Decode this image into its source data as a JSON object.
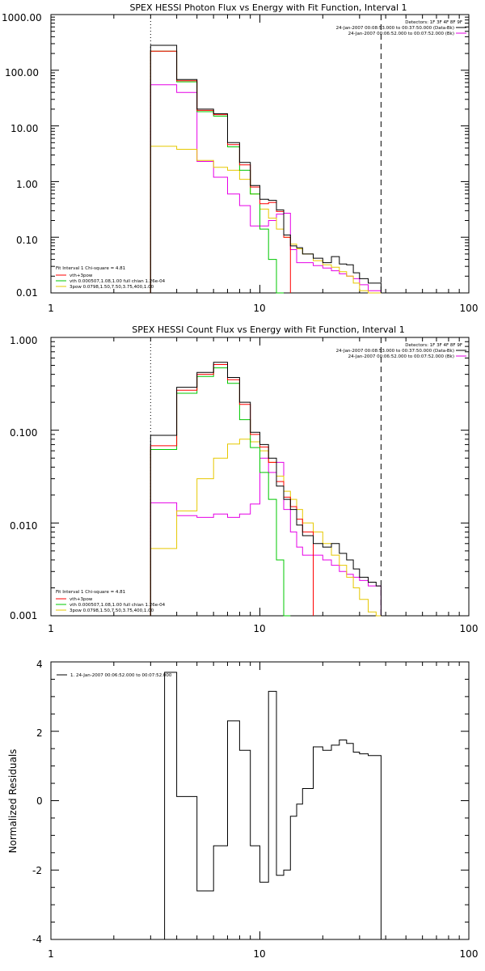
{
  "colors": {
    "background": "#ffffff",
    "total": "#000000",
    "vth_plus_3pow": "#ff0000",
    "vth": "#00c800",
    "three_pow": "#e6c800",
    "bk": "#e600e6",
    "axis": "#000000"
  },
  "chart_data": [
    {
      "type": "line",
      "title": "SPEX HESSI Photon Flux vs Energy with Fit Function, Interval 1",
      "xlabel": "",
      "ylabel": "",
      "xscale": "log",
      "yscale": "log",
      "xlim": [
        1,
        100
      ],
      "ylim": [
        0.01,
        1000
      ],
      "xticks": [
        "1",
        "10",
        "100"
      ],
      "yticks": [
        "0.01",
        "0.10",
        "1.00",
        "10.00",
        "100.00",
        "1000.00"
      ],
      "legend_top_right": [
        "Detectors: 1F 3F 4F 8F 9F",
        "24-Jan-2007 00:08:53.000 to 00:37:50.000 (Data-Bk)",
        "24-Jan-2007 00:06:52.000 to 00:07:52.000 (Bk)"
      ],
      "legend_bottom_left": [
        "Fit Interval 1   Chi-square = 4.81",
        "vth+3pow",
        "vth 0.000507,1.08,1.00  full chian 1.26e-04",
        "3pow 0.0798,1.50,7.50,3.75,400,1.00"
      ],
      "vlines": [
        {
          "x": 3,
          "style": "dotted"
        },
        {
          "x": 38,
          "style": "dashed"
        }
      ],
      "edges": [
        3,
        4,
        5,
        6,
        7,
        8,
        9,
        10,
        11,
        12,
        13,
        14,
        15,
        16,
        18,
        20,
        22,
        24,
        26,
        28,
        30,
        33,
        36,
        38
      ],
      "series": [
        {
          "name": "Data-Bk",
          "key": "total",
          "values": [
            280,
            68,
            20,
            16.5,
            5,
            2.2,
            0.85,
            0.48,
            0.46,
            0.31,
            0.11,
            0.07,
            0.065,
            0.05,
            0.042,
            0.035,
            0.045,
            0.033,
            0.032,
            0.023,
            0.018,
            0.015,
            0.015
          ]
        },
        {
          "name": "vth+3pow",
          "key": "vth_plus_3pow",
          "values": [
            220,
            65,
            19,
            16,
            4.6,
            2,
            0.8,
            0.4,
            0.42,
            0.29,
            0.1
          ]
        },
        {
          "name": "vth",
          "key": "vth",
          "values": [
            220,
            62,
            18,
            15,
            4.2,
            1.6,
            0.6,
            0.14,
            0.04,
            0.008
          ]
        },
        {
          "name": "3pow",
          "key": "three_pow",
          "values": [
            4.3,
            3.8,
            2.4,
            1.8,
            1.6,
            1.1,
            0.6,
            0.32,
            0.22,
            0.14,
            0.1,
            0.075,
            0.062,
            0.05,
            0.038,
            0.032,
            0.029,
            0.024,
            0.02,
            0.015,
            0.011,
            0.008,
            0.008
          ]
        },
        {
          "name": "Bk",
          "key": "bk",
          "values": [
            55,
            40,
            2.3,
            1.2,
            0.6,
            0.37,
            0.16,
            0.16,
            0.2,
            0.26,
            0.27,
            0.06,
            0.035,
            0.035,
            0.031,
            0.028,
            0.025,
            0.022,
            0.02,
            0.018,
            0.014,
            0.011,
            0.011
          ]
        }
      ]
    },
    {
      "type": "line",
      "title": "SPEX HESSI Count Flux vs Energy with Fit Function, Interval 1",
      "xlabel": "",
      "ylabel": "",
      "xscale": "log",
      "yscale": "log",
      "xlim": [
        1,
        100
      ],
      "ylim": [
        0.001,
        1
      ],
      "xticks": [
        "1",
        "10",
        "100"
      ],
      "yticks": [
        "0.001",
        "0.010",
        "0.100",
        "1.000"
      ],
      "legend_top_right": [
        "Detectors: 1F 3F 4F 8F 9F",
        "24-Jan-2007 00:08:53.000 to 00:37:50.000 (Data-Bk)",
        "24-Jan-2007 00:06:52.000 to 00:07:52.000 (Bk)"
      ],
      "legend_bottom_left": [
        "Fit Interval 1   Chi-square = 4.81",
        "vth+3pow",
        "vth 0.000507,1.08,1.00  full chian 1.26e-04",
        "3pow 0.0798,1.50,7.50,3.75,400,1.00"
      ],
      "vlines": [
        {
          "x": 3,
          "style": "dotted"
        },
        {
          "x": 38,
          "style": "dashed"
        }
      ],
      "edges": [
        3,
        4,
        5,
        6,
        7,
        8,
        9,
        10,
        11,
        12,
        13,
        14,
        15,
        16,
        18,
        20,
        22,
        24,
        26,
        28,
        30,
        33,
        36,
        38
      ],
      "series": [
        {
          "name": "Data-Bk",
          "key": "total",
          "values": [
            0.088,
            0.29,
            0.42,
            0.54,
            0.37,
            0.2,
            0.095,
            0.07,
            0.05,
            0.025,
            0.018,
            0.014,
            0.0095,
            0.0073,
            0.006,
            0.0055,
            0.006,
            0.0047,
            0.004,
            0.0032,
            0.0026,
            0.0023,
            0.0021
          ]
        },
        {
          "name": "vth+3pow",
          "key": "vth_plus_3pow",
          "values": [
            0.068,
            0.27,
            0.4,
            0.51,
            0.35,
            0.19,
            0.09,
            0.066,
            0.045,
            0.028,
            0.019,
            0.015,
            0.011,
            0.008
          ]
        },
        {
          "name": "vth",
          "key": "vth",
          "values": [
            0.062,
            0.25,
            0.38,
            0.47,
            0.32,
            0.13,
            0.065,
            0.035,
            0.018,
            0.004,
            0.0009
          ]
        },
        {
          "name": "3pow",
          "key": "three_pow",
          "values": [
            0.0053,
            0.0135,
            0.03,
            0.05,
            0.071,
            0.08,
            0.075,
            0.06,
            0.045,
            0.032,
            0.022,
            0.018,
            0.014,
            0.01,
            0.008,
            0.006,
            0.0045,
            0.0035,
            0.0026,
            0.002,
            0.0015,
            0.0011,
            0.0009
          ]
        },
        {
          "name": "Bk",
          "key": "bk",
          "values": [
            0.0165,
            0.012,
            0.0115,
            0.0125,
            0.0115,
            0.0125,
            0.016,
            0.05,
            0.035,
            0.045,
            0.014,
            0.008,
            0.0055,
            0.0045,
            0.0045,
            0.004,
            0.0035,
            0.003,
            0.0028,
            0.0026,
            0.0024,
            0.0021,
            0.0021
          ]
        }
      ]
    },
    {
      "type": "line",
      "title": "",
      "xlabel": "",
      "ylabel": "Normalized  Residuals",
      "xscale": "log",
      "yscale": "linear",
      "xlim": [
        1,
        100
      ],
      "ylim": [
        -4,
        4
      ],
      "xticks": [
        "1",
        "10",
        "100"
      ],
      "yticks": [
        "-4",
        "-2",
        "0",
        "2",
        "4"
      ],
      "legend_top_left": "1. 24-Jan-2007 00:06:52.000 to 00:07:52.000",
      "edges": [
        3,
        3.5,
        4,
        5,
        6,
        7,
        8,
        9,
        10,
        11,
        12,
        13,
        14,
        15,
        16,
        18,
        20,
        22,
        24,
        26,
        28,
        30,
        33,
        36,
        38
      ],
      "series": [
        {
          "name": "residuals",
          "key": "total",
          "values": [
            -4,
            3.7,
            0.12,
            -2.6,
            -1.3,
            2.3,
            1.45,
            -1.3,
            -2.35,
            3.15,
            -2.15,
            -2.0,
            -0.45,
            -0.1,
            0.35,
            1.55,
            1.45,
            1.6,
            1.75,
            1.65,
            1.4,
            1.35,
            1.3,
            1.3
          ]
        }
      ]
    }
  ]
}
